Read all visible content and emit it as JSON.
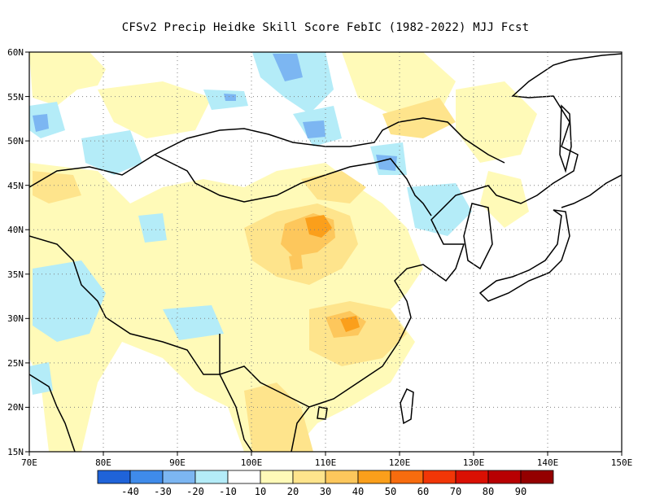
{
  "title": "CFSv2 Precip Heidke Skill Score FebIC (1982-2022) MJJ Fcst",
  "map": {
    "lon_range": [
      70,
      150
    ],
    "lat_range": [
      15,
      60
    ],
    "x_ticks": [
      "70E",
      "80E",
      "90E",
      "100E",
      "110E",
      "120E",
      "130E",
      "140E",
      "150E"
    ],
    "y_ticks": [
      "15N",
      "20N",
      "25N",
      "30N",
      "35N",
      "40N",
      "45N",
      "50N",
      "55N",
      "60N"
    ],
    "grid": true
  },
  "colorbar": {
    "colors": [
      "#1f63d9",
      "#3f8bea",
      "#7cb6f2",
      "#b4ecf8",
      "#ffffff",
      "#fffab8",
      "#fee48c",
      "#fdc75c",
      "#fb9f1b",
      "#f86c0e",
      "#f13607",
      "#da1003",
      "#b80002",
      "#940000"
    ],
    "labels": [
      "-40",
      "-30",
      "-20",
      "-10",
      "10",
      "20",
      "30",
      "40",
      "50",
      "60",
      "70",
      "80",
      "90"
    ]
  }
}
